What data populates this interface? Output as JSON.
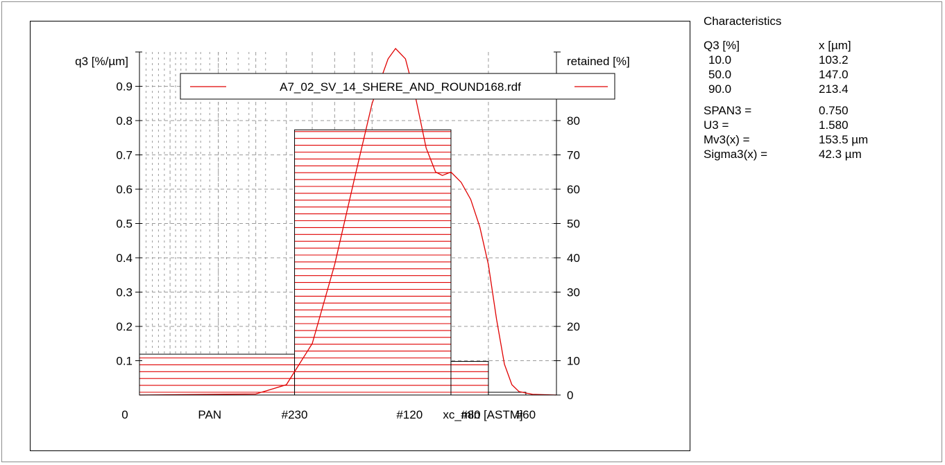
{
  "chart_data": {
    "type": "histogram",
    "left_axis": {
      "label": "q3 [%/µm]",
      "ticks": [
        0.1,
        0.2,
        0.3,
        0.4,
        0.5,
        0.6,
        0.7,
        0.8,
        0.9
      ],
      "range": [
        0,
        1.0
      ]
    },
    "right_axis": {
      "label": "retained [%]",
      "ticks": [
        0,
        10,
        20,
        30,
        40,
        50,
        60,
        70,
        80
      ],
      "range": [
        0,
        100
      ]
    },
    "x_axis": {
      "label": "xc_min [ASTM]",
      "zero_label": "0",
      "range_um": [
        25,
        300
      ],
      "ticks": [
        {
          "label": "PAN",
          "x": 38
        },
        {
          "label": "#230",
          "x": 63
        },
        {
          "label": "#120",
          "x": 125
        },
        {
          "label": "#80",
          "x": 180
        },
        {
          "label": "#60",
          "x": 250
        }
      ]
    },
    "bars": [
      {
        "from": 25,
        "to": 63,
        "retained": 11.9
      },
      {
        "from": 63,
        "to": 160,
        "retained": 77.3
      },
      {
        "from": 160,
        "to": 200,
        "retained": 9.8
      },
      {
        "from": 200,
        "to": 250,
        "retained": 0.8
      },
      {
        "from": 250,
        "to": 300,
        "retained": 0.1
      }
    ],
    "series": [
      {
        "name": "A7_02_SV_14_SHERE_AND_ROUND168.rdf",
        "color": "#e00000",
        "points": [
          [
            25,
            0
          ],
          [
            50,
            0.003
          ],
          [
            60,
            0.03
          ],
          [
            70,
            0.15
          ],
          [
            80,
            0.38
          ],
          [
            90,
            0.63
          ],
          [
            100,
            0.85
          ],
          [
            110,
            0.98
          ],
          [
            115,
            1.01
          ],
          [
            122,
            0.98
          ],
          [
            130,
            0.86
          ],
          [
            138,
            0.72
          ],
          [
            146,
            0.65
          ],
          [
            152,
            0.64
          ],
          [
            160,
            0.65
          ],
          [
            170,
            0.62
          ],
          [
            180,
            0.57
          ],
          [
            190,
            0.49
          ],
          [
            200,
            0.38
          ],
          [
            210,
            0.22
          ],
          [
            220,
            0.09
          ],
          [
            230,
            0.03
          ],
          [
            240,
            0.01
          ],
          [
            260,
            0.002
          ],
          [
            300,
            0
          ]
        ]
      }
    ],
    "grid": true,
    "legend_placement": "top"
  },
  "stats": {
    "title": "Characteristics",
    "col1_header": "Q3 [%]",
    "col2_header": "x [µm]",
    "quantiles": [
      {
        "q": "10.0",
        "x": "103.2"
      },
      {
        "q": "50.0",
        "x": "147.0"
      },
      {
        "q": "90.0",
        "x": "213.4"
      }
    ],
    "params": [
      {
        "label": "SPAN3 =",
        "value": "0.750"
      },
      {
        "label": "U3 =",
        "value": "1.580"
      },
      {
        "label": "Mv3(x) =",
        "value": "153.5 µm"
      },
      {
        "label": "Sigma3(x) =",
        "value": "42.3 µm"
      }
    ]
  }
}
